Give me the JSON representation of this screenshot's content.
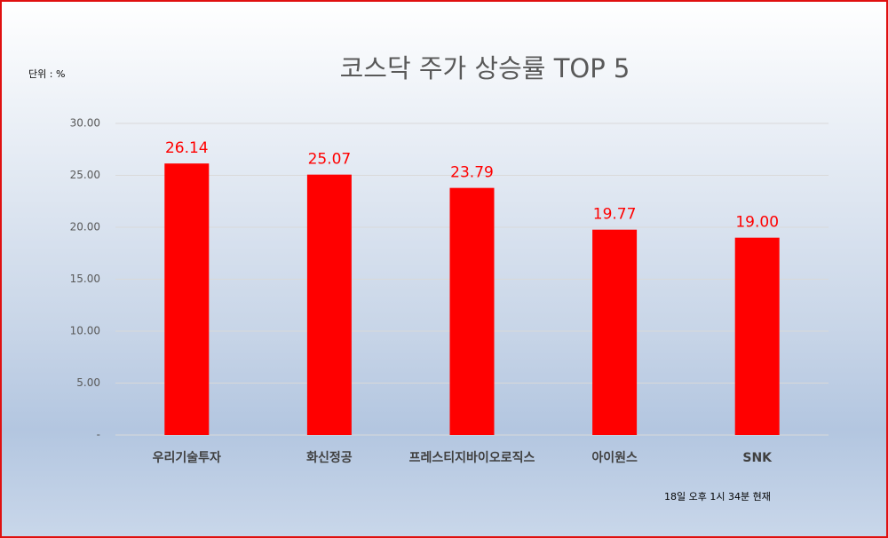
{
  "chart_data": {
    "type": "bar",
    "title": "코스닥 주가 상승률 TOP 5",
    "unit_label": "단위 : %",
    "note": "18일 오후 1시 34분 현재",
    "categories": [
      "우리기술투자",
      "화신정공",
      "프레스티지바이오로직스",
      "아이원스",
      "SNK"
    ],
    "values": [
      26.14,
      25.07,
      23.79,
      19.77,
      19.0
    ],
    "value_labels": [
      "26.14",
      "25.07",
      "23.79",
      "19.77",
      "19.00"
    ],
    "color": "#ff0000",
    "label_color": "#ff0000",
    "ylim": [
      0,
      30
    ],
    "yticks": [
      {
        "value": 0,
        "label": "-"
      },
      {
        "value": 5,
        "label": "5.00"
      },
      {
        "value": 10,
        "label": "10.00"
      },
      {
        "value": 15,
        "label": "15.00"
      },
      {
        "value": 20,
        "label": "20.00"
      },
      {
        "value": 25,
        "label": "25.00"
      },
      {
        "value": 30,
        "label": "30.00"
      }
    ],
    "grid": true
  }
}
